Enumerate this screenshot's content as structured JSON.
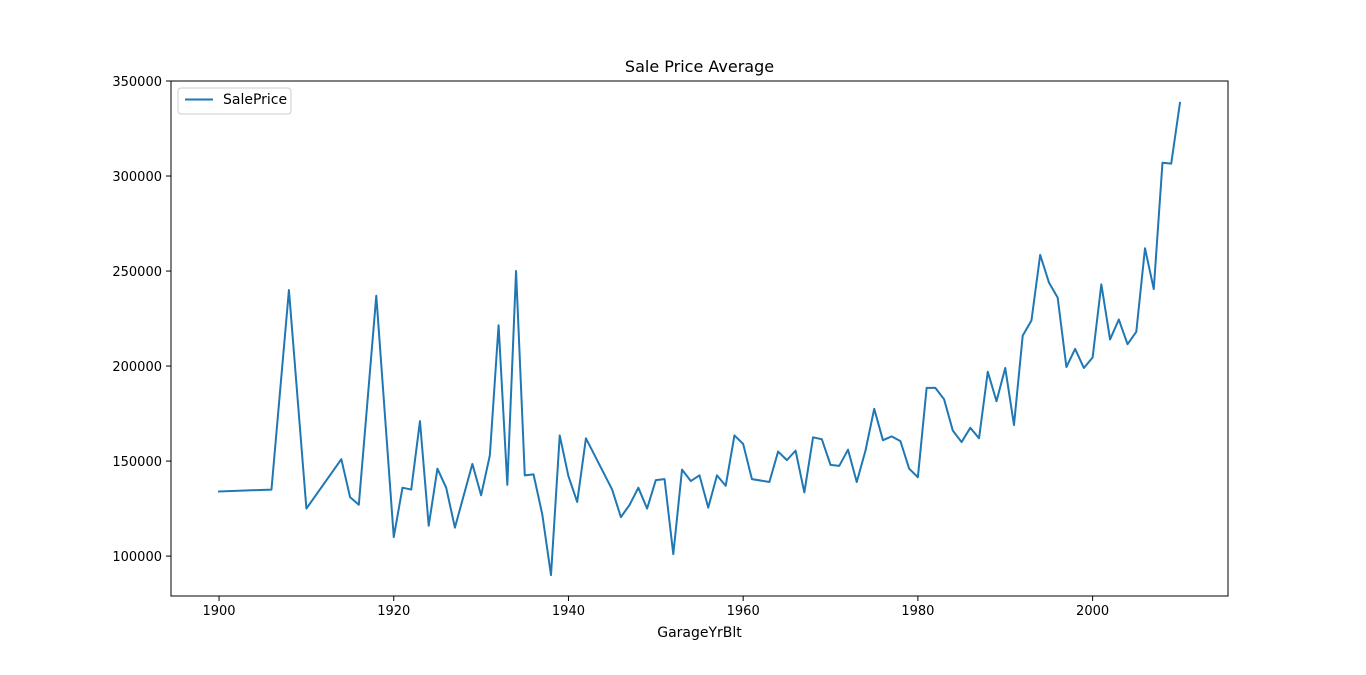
{
  "chart_data": {
    "type": "line",
    "title": "Sale Price Average",
    "xlabel": "GarageYrBlt",
    "ylabel": "",
    "xlim": [
      1894.5,
      2015.5
    ],
    "ylim": [
      79000,
      350000
    ],
    "x_ticks": [
      1900,
      1920,
      1940,
      1960,
      1980,
      2000
    ],
    "y_ticks": [
      100000,
      150000,
      200000,
      250000,
      300000,
      350000
    ],
    "grid": false,
    "legend_position": "top-left",
    "line_color": "#1f77b4",
    "series": [
      {
        "name": "SalePrice",
        "x": [
          1900,
          1906,
          1908,
          1910,
          1914,
          1915,
          1916,
          1918,
          1920,
          1921,
          1922,
          1923,
          1924,
          1925,
          1926,
          1927,
          1929,
          1930,
          1931,
          1932,
          1933,
          1934,
          1935,
          1936,
          1937,
          1938,
          1939,
          1940,
          1941,
          1942,
          1945,
          1946,
          1947,
          1948,
          1949,
          1950,
          1951,
          1952,
          1953,
          1954,
          1955,
          1956,
          1957,
          1958,
          1959,
          1960,
          1961,
          1963,
          1964,
          1965,
          1966,
          1967,
          1968,
          1969,
          1970,
          1971,
          1972,
          1973,
          1974,
          1975,
          1976,
          1977,
          1978,
          1979,
          1980,
          1981,
          1982,
          1983,
          1984,
          1985,
          1986,
          1987,
          1988,
          1989,
          1990,
          1991,
          1992,
          1993,
          1994,
          1995,
          1996,
          1997,
          1998,
          1999,
          2000,
          2001,
          2002,
          2003,
          2004,
          2005,
          2006,
          2007,
          2008,
          2009,
          2010
        ],
        "y": [
          134000,
          135000,
          240000,
          125000,
          151000,
          131000,
          127000,
          237000,
          110000,
          136000,
          135000,
          171000,
          116000,
          146000,
          136000,
          115000,
          148500,
          132000,
          153000,
          221500,
          137500,
          250000,
          142500,
          143000,
          122000,
          90000,
          163500,
          142000,
          128500,
          162000,
          135000,
          120500,
          127000,
          136000,
          125000,
          140000,
          140500,
          101000,
          145500,
          139500,
          142500,
          125500,
          142500,
          137000,
          163500,
          159000,
          140500,
          139000,
          155000,
          150500,
          155500,
          133500,
          162500,
          161500,
          148000,
          147500,
          156000,
          139000,
          155500,
          177500,
          161000,
          163000,
          160500,
          146000,
          141500,
          188500,
          188500,
          182500,
          166000,
          160000,
          167500,
          162000,
          197000,
          181500,
          199000,
          169000,
          216000,
          224000,
          258500,
          244000,
          236000,
          199500,
          209000,
          199000,
          204500,
          243000,
          214000,
          224500,
          211500,
          218000,
          262000,
          240500,
          307000,
          306500,
          338500
        ]
      }
    ]
  }
}
